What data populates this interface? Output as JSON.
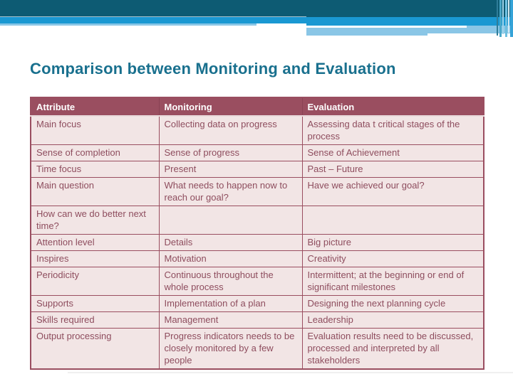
{
  "slide": {
    "title": "Comparison between Monitoring and Evaluation"
  },
  "table": {
    "headers": [
      "Attribute",
      "Monitoring",
      "Evaluation"
    ],
    "rows": [
      [
        "Main focus",
        "Collecting data on progress",
        "Assessing data t critical stages of the process"
      ],
      [
        "Sense of completion",
        "Sense of progress",
        "Sense of Achievement"
      ],
      [
        "Time focus",
        "Present",
        "Past – Future"
      ],
      [
        "Main question",
        "What needs to happen now to reach our goal?",
        "Have we achieved our goal?"
      ],
      [
        "How can we do better next time?",
        "",
        ""
      ],
      [
        "Attention level",
        "Details",
        "Big picture"
      ],
      [
        "Inspires",
        "Motivation",
        "Creativity"
      ],
      [
        "Periodicity",
        "Continuous throughout the whole process",
        "Intermittent; at the beginning or end of significant milestones"
      ],
      [
        "Supports",
        "Implementation of a plan",
        "Designing the next planning cycle"
      ],
      [
        "Skills required",
        "Management",
        "Leadership"
      ],
      [
        "Output processing",
        "Progress indicators needs to be closely monitored by a few people",
        "Evaluation results need to be discussed, processed and interpreted by all stakeholders"
      ]
    ]
  },
  "colors": {
    "title_text": "#19708E",
    "table_header_bg": "#9A4E60",
    "table_header_text": "#FFFFFF",
    "table_cell_bg": "#F2E5E5",
    "table_cell_text": "#8E4D5E",
    "table_border": "#9A4E60",
    "banner_dark_teal": "#0D5B73",
    "banner_medium_blue": "#1A98D2",
    "banner_light_blue": "#8AC6E6"
  }
}
